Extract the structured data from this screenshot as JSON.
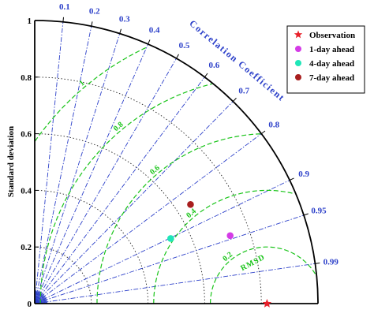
{
  "chart_data": {
    "type": "scatter",
    "subtype": "taylor-diagram",
    "title": "",
    "ylabel": "Standard deviation",
    "corr_axis_label": "Correlation Coefficient",
    "std_range": [
      0,
      1
    ],
    "std_ticks": [
      "0",
      "0.2",
      "0.4",
      "0.6",
      "0.8",
      "1"
    ],
    "correlation_ticks": [
      {
        "value": 0.1,
        "label": "0.1"
      },
      {
        "value": 0.2,
        "label": "0.2"
      },
      {
        "value": 0.3,
        "label": "0.3"
      },
      {
        "value": 0.4,
        "label": "0.4"
      },
      {
        "value": 0.5,
        "label": "0.5"
      },
      {
        "value": 0.6,
        "label": "0.6"
      },
      {
        "value": 0.7,
        "label": "0.7"
      },
      {
        "value": 0.8,
        "label": "0.8"
      },
      {
        "value": 0.9,
        "label": "0.9"
      },
      {
        "value": 0.95,
        "label": "0.95"
      },
      {
        "value": 0.99,
        "label": "0.99"
      }
    ],
    "rms_label": "RMSD",
    "rms_arcs": [
      {
        "value": 0.2,
        "label": "0.2"
      },
      {
        "value": 0.4,
        "label": "0.4"
      },
      {
        "value": 0.6,
        "label": "0.6"
      },
      {
        "value": 0.8,
        "label": "0.8"
      },
      {
        "value": 1.0,
        "label": "1"
      }
    ],
    "reference_std": 0.82,
    "legend_position": "top-right",
    "series": [
      {
        "name": "Observation",
        "marker": "star",
        "color": "#e8202a",
        "x": 0.82,
        "y": 0.0
      },
      {
        "name": "1-day ahead",
        "marker": "circle",
        "color": "#d43be6",
        "x": 0.69,
        "y": 0.24
      },
      {
        "name": "4-day ahead",
        "marker": "circle",
        "color": "#1fe6b8",
        "x": 0.48,
        "y": 0.23
      },
      {
        "name": "7-day ahead",
        "marker": "circle",
        "color": "#a81e1e",
        "x": 0.55,
        "y": 0.35
      }
    ],
    "colors": {
      "axis": "#000000",
      "correlation": "#2b3fc9",
      "rms": "#19c419",
      "std_arcs": "#222222"
    }
  }
}
